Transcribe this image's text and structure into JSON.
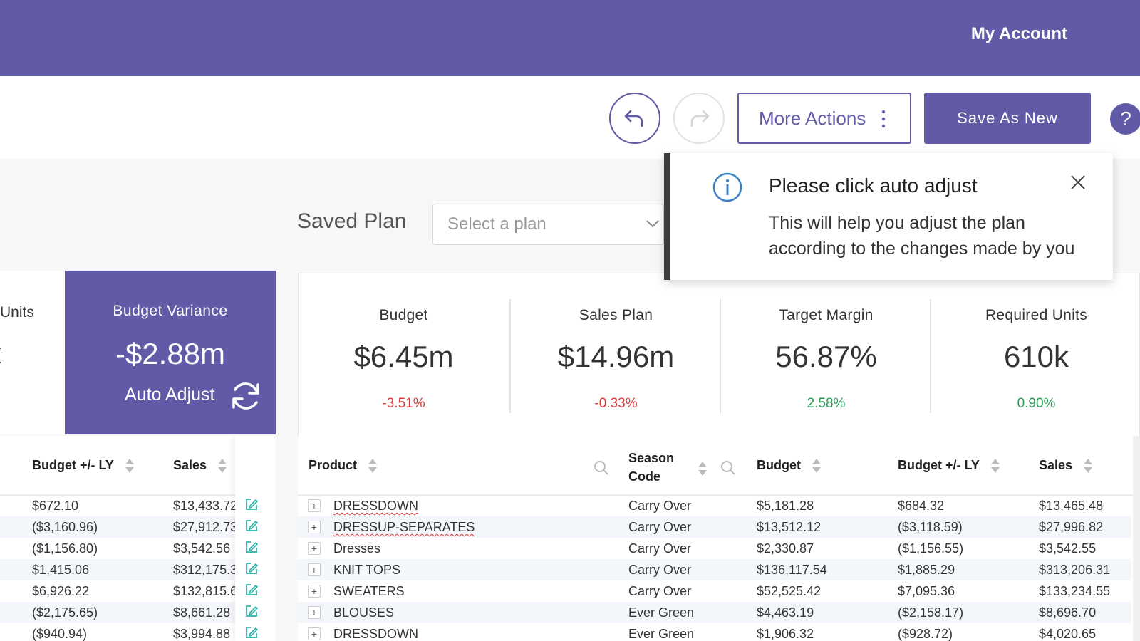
{
  "header": {
    "account_label": "My Account"
  },
  "toolbar": {
    "more_actions_label": "More Actions",
    "save_as_new_label": "Save As New",
    "help_label": "?"
  },
  "saved_plan": {
    "label": "Saved Plan",
    "placeholder": "Select a plan"
  },
  "toast": {
    "title": "Please click auto adjust",
    "message": "This will help you adjust the plan according to the changes made by you"
  },
  "left_partial_card": {
    "label": "Units",
    "value": "k"
  },
  "variance_card": {
    "label": "Budget Variance",
    "value": "-$2.88m",
    "auto_adjust_label": "Auto Adjust"
  },
  "metrics": [
    {
      "label": "Budget",
      "value": "$6.45m",
      "change": "-3.51%",
      "trend": "negative"
    },
    {
      "label": "Sales Plan",
      "value": "$14.96m",
      "change": "-0.33%",
      "trend": "negative"
    },
    {
      "label": "Target Margin",
      "value": "56.87%",
      "change": "2.58%",
      "trend": "positive"
    },
    {
      "label": "Required Units",
      "value": "610k",
      "change": "0.90%",
      "trend": "positive"
    }
  ],
  "left_table": {
    "headers": {
      "budget_ly": "Budget +/- LY",
      "sales": "Sales"
    },
    "rows": [
      {
        "budget_ly": "$672.10",
        "sales": "$13,433.72"
      },
      {
        "budget_ly": "($3,160.96)",
        "sales": "$27,912.73"
      },
      {
        "budget_ly": "($1,156.80)",
        "sales": "$3,542.56"
      },
      {
        "budget_ly": "$1,415.06",
        "sales": "$312,175.3"
      },
      {
        "budget_ly": "$6,926.22",
        "sales": "$132,815.6"
      },
      {
        "budget_ly": "($2,175.65)",
        "sales": "$8,661.28"
      },
      {
        "budget_ly": "($940.94)",
        "sales": "$3,994.88"
      }
    ]
  },
  "main_table": {
    "headers": {
      "product": "Product",
      "season_code_line1": "Season",
      "season_code_line2": "Code",
      "budget": "Budget",
      "budget_ly": "Budget +/- LY",
      "sales": "Sales"
    },
    "rows": [
      {
        "product": "DRESSDOWN",
        "season": "Carry Over",
        "budget": "$5,181.28",
        "budget_ly": "$684.32",
        "sales": "$13,465.48"
      },
      {
        "product": "DRESSUP-SEPARATES",
        "season": "Carry Over",
        "budget": "$13,512.12",
        "budget_ly": "($3,118.59)",
        "sales": "$27,996.82"
      },
      {
        "product": "Dresses",
        "season": "Carry Over",
        "budget": "$2,330.87",
        "budget_ly": "($1,156.55)",
        "sales": "$3,542.55"
      },
      {
        "product": "KNIT TOPS",
        "season": "Carry Over",
        "budget": "$136,117.54",
        "budget_ly": "$1,885.29",
        "sales": "$313,206.31"
      },
      {
        "product": "SWEATERS",
        "season": "Carry Over",
        "budget": "$52,525.42",
        "budget_ly": "$7,095.36",
        "sales": "$133,234.55"
      },
      {
        "product": "BLOUSES",
        "season": "Ever Green",
        "budget": "$4,463.19",
        "budget_ly": "($2,158.17)",
        "sales": "$8,696.70"
      },
      {
        "product": "DRESSDOWN",
        "season": "Ever Green",
        "budget": "$1,906.32",
        "budget_ly": "($928.72)",
        "sales": "$4,020.65"
      }
    ]
  },
  "colors": {
    "brand": "#605aa7",
    "negative": "#d93a3a",
    "positive": "#2a9a55",
    "edit_icon": "#2bb3a8"
  }
}
